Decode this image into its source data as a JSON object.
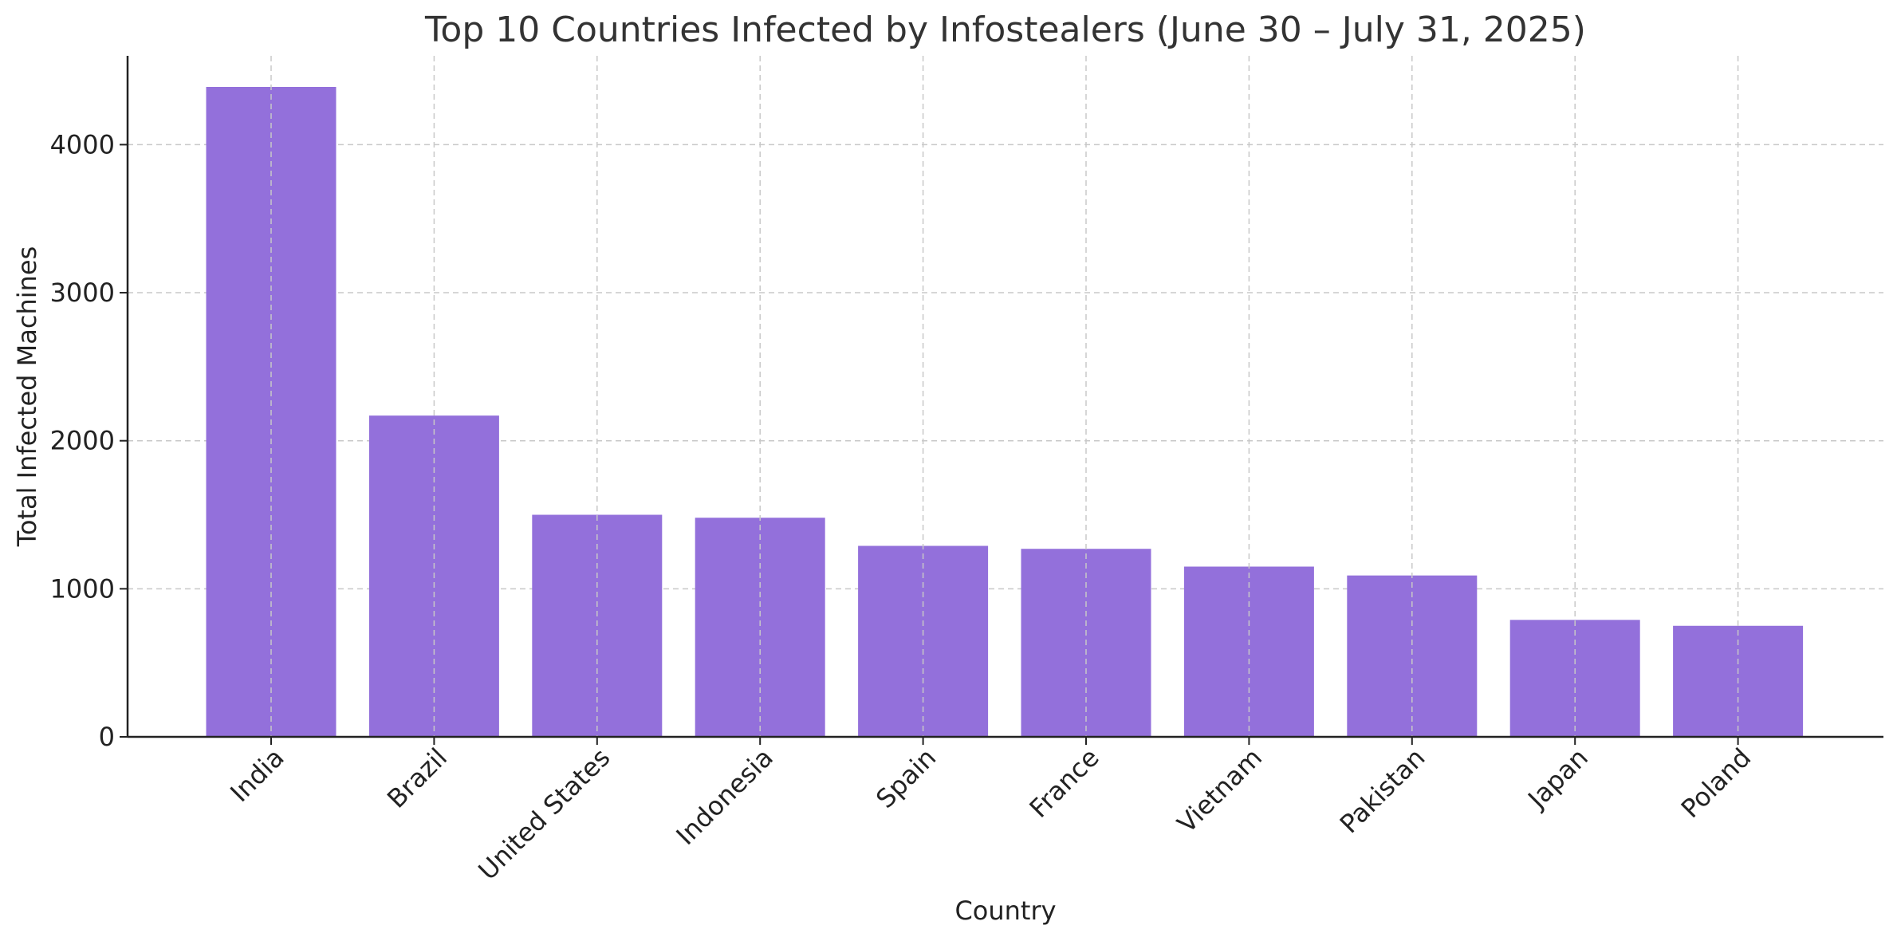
{
  "chart_data": {
    "type": "bar",
    "title": "Top 10 Countries Infected by Infostealers (June 30 – July 31, 2025)",
    "xlabel": "Country",
    "ylabel": "Total Infected Machines",
    "categories": [
      "India",
      "Brazil",
      "United States",
      "Indonesia",
      "Spain",
      "France",
      "Vietnam",
      "Pakistan",
      "Japan",
      "Poland"
    ],
    "values": [
      4390,
      2170,
      1500,
      1480,
      1290,
      1270,
      1150,
      1090,
      790,
      750
    ],
    "ylim": [
      0,
      4600
    ],
    "yticks": [
      0,
      1000,
      2000,
      3000,
      4000
    ],
    "grid": true,
    "bar_color": "#9370DB",
    "grid_color": "#c8c8c8"
  }
}
